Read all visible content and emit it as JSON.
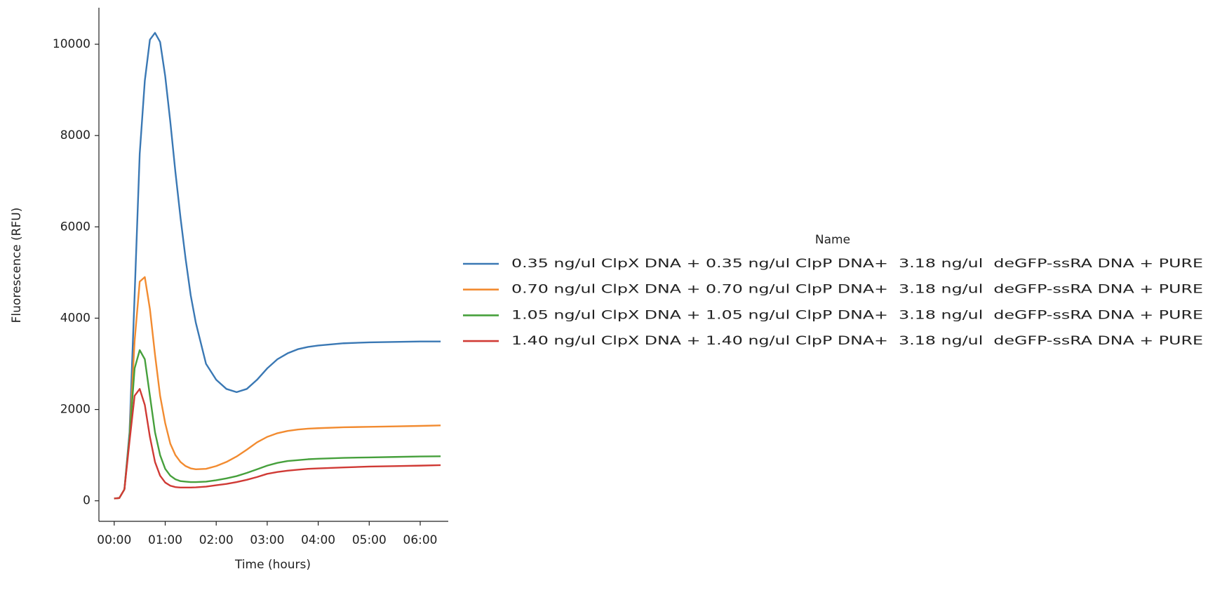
{
  "chart_data": {
    "type": "line",
    "xlabel": "Time (hours)",
    "ylabel": "Fluorescence (RFU)",
    "legend_title": "Name",
    "legend": "right",
    "x": [
      0,
      0.1,
      0.2,
      0.3,
      0.4,
      0.5,
      0.6,
      0.7,
      0.8,
      0.9,
      1.0,
      1.1,
      1.2,
      1.3,
      1.4,
      1.5,
      1.6,
      1.8,
      2.0,
      2.2,
      2.4,
      2.6,
      2.8,
      3.0,
      3.2,
      3.4,
      3.6,
      3.8,
      4.0,
      4.5,
      5.0,
      5.5,
      6.0,
      6.4
    ],
    "series": [
      {
        "name": "0.35 ng/ul ClpX DNA + 0.35 ng/ul ClpP DNA+  3.18 ng/ul  deGFP-ssRA DNA + PURE",
        "color": "#3a78b4",
        "values": [
          50,
          60,
          250,
          1500,
          4500,
          7600,
          9200,
          10100,
          10250,
          10050,
          9300,
          8300,
          7200,
          6200,
          5300,
          4500,
          3900,
          3000,
          2650,
          2450,
          2380,
          2450,
          2650,
          2900,
          3100,
          3230,
          3320,
          3370,
          3400,
          3450,
          3470,
          3480,
          3490,
          3490
        ]
      },
      {
        "name": "0.70 ng/ul ClpX DNA + 0.70 ng/ul ClpP DNA+  3.18 ng/ul  deGFP-ssRA DNA + PURE",
        "color": "#f28b30",
        "values": [
          50,
          60,
          250,
          1400,
          3500,
          4800,
          4900,
          4200,
          3200,
          2300,
          1700,
          1250,
          1000,
          850,
          760,
          710,
          690,
          700,
          760,
          850,
          970,
          1120,
          1280,
          1400,
          1480,
          1530,
          1560,
          1580,
          1590,
          1610,
          1620,
          1630,
          1640,
          1650
        ]
      },
      {
        "name": "1.05 ng/ul ClpX DNA + 1.05 ng/ul ClpP DNA+  3.18 ng/ul  deGFP-ssRA DNA + PURE",
        "color": "#46a03c",
        "values": [
          50,
          60,
          250,
          1400,
          2900,
          3300,
          3100,
          2300,
          1500,
          1000,
          700,
          550,
          470,
          430,
          420,
          410,
          410,
          420,
          450,
          490,
          540,
          610,
          690,
          770,
          830,
          870,
          890,
          910,
          920,
          940,
          950,
          960,
          970,
          975
        ]
      },
      {
        "name": "1.40 ng/ul ClpX DNA + 1.40 ng/ul ClpP DNA+  3.18 ng/ul  deGFP-ssRA DNA + PURE",
        "color": "#d03a35",
        "values": [
          50,
          60,
          250,
          1300,
          2300,
          2450,
          2100,
          1400,
          850,
          550,
          400,
          330,
          300,
          290,
          290,
          290,
          295,
          310,
          340,
          370,
          410,
          460,
          520,
          590,
          630,
          660,
          680,
          700,
          710,
          730,
          750,
          760,
          770,
          780
        ]
      }
    ],
    "xlim": [
      -0.3,
      6.55
    ],
    "xticks": [
      {
        "value": 0,
        "label": "00:00"
      },
      {
        "value": 1,
        "label": "01:00"
      },
      {
        "value": 2,
        "label": "02:00"
      },
      {
        "value": 3,
        "label": "03:00"
      },
      {
        "value": 4,
        "label": "04:00"
      },
      {
        "value": 5,
        "label": "05:00"
      },
      {
        "value": 6,
        "label": "06:00"
      }
    ],
    "ylim": [
      -450,
      10800
    ],
    "yticks": [
      0,
      2000,
      4000,
      6000,
      8000,
      10000
    ],
    "grid": false
  }
}
